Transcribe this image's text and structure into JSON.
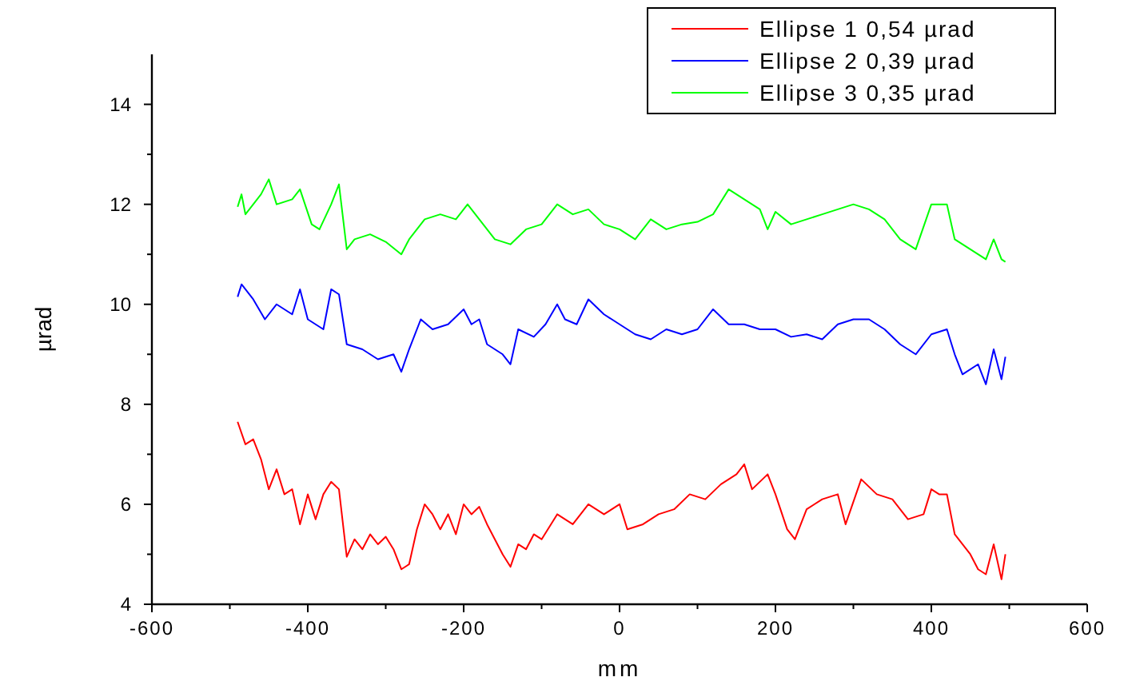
{
  "chart_data": {
    "type": "line",
    "xlabel": "mm",
    "ylabel": "µrad",
    "xlim": [
      -600,
      600
    ],
    "ylim": [
      4,
      15
    ],
    "xticks": [
      -600,
      {
        "value": -500,
        "label": null
      },
      -400,
      {
        "value": -300,
        "label": null
      },
      -200,
      {
        "value": -100,
        "label": null
      },
      0,
      {
        "value": 100,
        "label": null
      },
      200,
      {
        "value": 300,
        "label": null
      },
      400,
      {
        "value": 500,
        "label": null
      },
      600
    ],
    "yticks": [
      4,
      {
        "value": 5,
        "label": null
      },
      6,
      {
        "value": 7,
        "label": null
      },
      8,
      {
        "value": 9,
        "label": null
      },
      10,
      {
        "value": 11,
        "label": null
      },
      12,
      {
        "value": 13,
        "label": null
      },
      14
    ],
    "grid": false,
    "legend": "top right",
    "marker": "none",
    "line_style": "solid",
    "x": [
      -490,
      -480,
      -470,
      -460,
      -450,
      -440,
      -430,
      -420,
      -410,
      -400,
      -390,
      -380,
      -370,
      -360,
      -350,
      -340,
      -330,
      -320,
      -310,
      -300,
      -290,
      -280,
      -270,
      -260,
      -250,
      -240,
      -230,
      -220,
      -210,
      -200,
      -190,
      -180,
      -170,
      -160,
      -150,
      -140,
      -130,
      -120,
      -110,
      -100,
      -80,
      -60,
      -40,
      -20,
      0,
      10,
      30,
      50,
      70,
      90,
      110,
      130,
      150,
      160,
      170,
      190,
      200,
      215,
      225,
      240,
      260,
      280,
      290,
      310,
      330,
      350,
      370,
      390,
      400,
      410,
      420,
      430,
      450,
      460,
      470,
      480,
      490,
      495
    ],
    "series": [
      {
        "name": "Ellipse 1 0,54 µrad",
        "color": "#ff0000",
        "values": [
          7.65,
          7.2,
          7.3,
          6.9,
          6.3,
          6.7,
          6.2,
          6.3,
          5.6,
          6.2,
          5.7,
          6.2,
          6.45,
          6.3,
          4.95,
          5.3,
          5.1,
          5.4,
          5.2,
          5.35,
          5.1,
          4.7,
          4.8,
          5.5,
          6.0,
          5.8,
          5.5,
          5.8,
          5.4,
          6.0,
          5.8,
          5.95,
          5.6,
          5.3,
          5.0,
          4.75,
          5.2,
          5.1,
          5.4,
          5.3,
          5.8,
          5.6,
          6.0,
          5.8,
          6.0,
          5.5,
          5.6,
          5.8,
          5.9,
          6.2,
          6.1,
          6.4,
          6.6,
          6.8,
          6.3,
          6.6,
          6.2,
          5.5,
          5.3,
          5.9,
          6.1,
          6.2,
          5.6,
          6.5,
          6.2,
          6.1,
          5.7,
          5.8,
          6.3,
          6.2,
          6.2,
          5.4,
          5.0,
          4.7,
          4.6,
          5.2,
          4.5,
          5.0
        ]
      },
      {
        "name": "Ellipse 2 0,39 µrad",
        "color": "#0000ff",
        "x": [
          -490,
          -485,
          -470,
          -455,
          -440,
          -420,
          -410,
          -400,
          -380,
          -370,
          -360,
          -350,
          -330,
          -310,
          -290,
          -280,
          -270,
          -255,
          -240,
          -220,
          -200,
          -190,
          -180,
          -170,
          -150,
          -140,
          -130,
          -110,
          -95,
          -80,
          -70,
          -55,
          -40,
          -20,
          0,
          20,
          40,
          60,
          80,
          100,
          120,
          140,
          160,
          180,
          200,
          220,
          240,
          260,
          280,
          300,
          320,
          340,
          360,
          380,
          400,
          420,
          430,
          440,
          460,
          470,
          480,
          490,
          495
        ],
        "values": [
          10.15,
          10.4,
          10.1,
          9.7,
          10.0,
          9.8,
          10.3,
          9.7,
          9.5,
          10.3,
          10.2,
          9.2,
          9.1,
          8.9,
          9.0,
          8.65,
          9.1,
          9.7,
          9.5,
          9.6,
          9.9,
          9.6,
          9.7,
          9.2,
          9.0,
          8.8,
          9.5,
          9.35,
          9.6,
          10.0,
          9.7,
          9.6,
          10.1,
          9.8,
          9.6,
          9.4,
          9.3,
          9.5,
          9.4,
          9.5,
          9.9,
          9.6,
          9.6,
          9.5,
          9.5,
          9.35,
          9.4,
          9.3,
          9.6,
          9.7,
          9.7,
          9.5,
          9.2,
          9.0,
          9.4,
          9.5,
          9.0,
          8.6,
          8.8,
          8.4,
          9.1,
          8.5,
          8.95
        ]
      },
      {
        "name": "Ellipse 3 0,35 µrad",
        "color": "#00ff00",
        "x": [
          -490,
          -485,
          -480,
          -460,
          -450,
          -440,
          -420,
          -410,
          -395,
          -385,
          -370,
          -360,
          -350,
          -340,
          -320,
          -300,
          -280,
          -270,
          -250,
          -230,
          -210,
          -195,
          -180,
          -160,
          -140,
          -120,
          -100,
          -80,
          -60,
          -40,
          -20,
          0,
          20,
          40,
          60,
          80,
          100,
          120,
          140,
          160,
          180,
          190,
          200,
          220,
          240,
          260,
          280,
          300,
          320,
          340,
          360,
          380,
          400,
          420,
          430,
          450,
          470,
          480,
          490,
          495
        ],
        "values": [
          11.95,
          12.2,
          11.8,
          12.2,
          12.5,
          12.0,
          12.1,
          12.3,
          11.6,
          11.5,
          12.0,
          12.4,
          11.1,
          11.3,
          11.4,
          11.25,
          11.0,
          11.3,
          11.7,
          11.8,
          11.7,
          12.0,
          11.7,
          11.3,
          11.2,
          11.5,
          11.6,
          12.0,
          11.8,
          11.9,
          11.6,
          11.5,
          11.3,
          11.7,
          11.5,
          11.6,
          11.65,
          11.8,
          12.3,
          12.1,
          11.9,
          11.5,
          11.85,
          11.6,
          11.7,
          11.8,
          11.9,
          12.0,
          11.9,
          11.7,
          11.3,
          11.1,
          12.0,
          12.0,
          11.3,
          11.1,
          10.9,
          11.3,
          10.9,
          10.85
        ]
      }
    ]
  }
}
